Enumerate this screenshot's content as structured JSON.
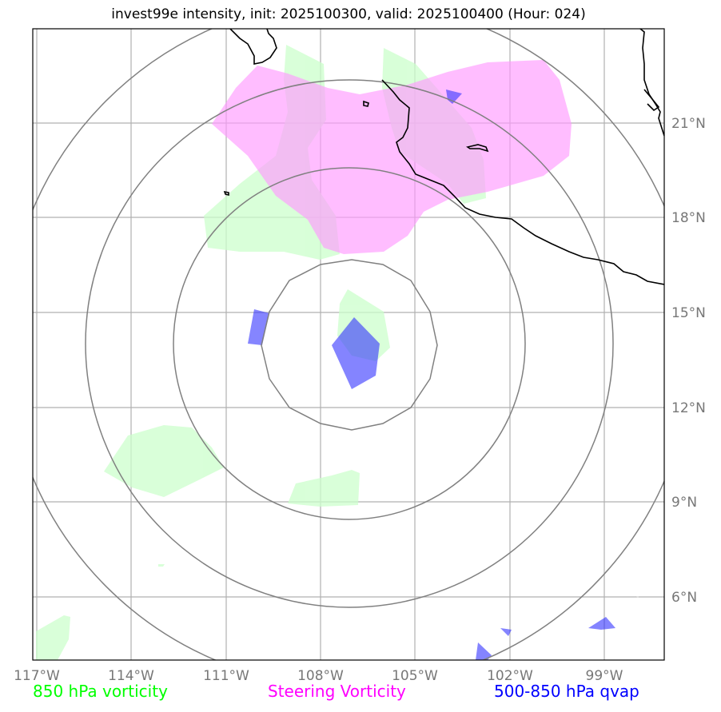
{
  "title": "invest99e intensity, init: 2025100300, valid: 2025100400 (Hour: 024)",
  "lon_ticks": [
    "117°W",
    "114°W",
    "111°W",
    "108°W",
    "105°W",
    "102°W",
    "99°W"
  ],
  "lat_ticks": [
    "21°N",
    "18°N",
    "15°N",
    "12°N",
    "9°N",
    "6°N"
  ],
  "legend": [
    {
      "label": "850 hPa vorticity",
      "color": "#00ff00"
    },
    {
      "label": "Steering Vorticity",
      "color": "#ff00ff"
    },
    {
      "label": "500-850 hPa qvap",
      "color": "#0000ff"
    }
  ],
  "layer_colors": {
    "vorticity_850": "#ccffcc",
    "steering_vorticity": "#ff99ff",
    "qvap": "#3333ff",
    "range_rings": "#808080",
    "gridlines": "#b0b0b0",
    "coastline": "#000000"
  }
}
